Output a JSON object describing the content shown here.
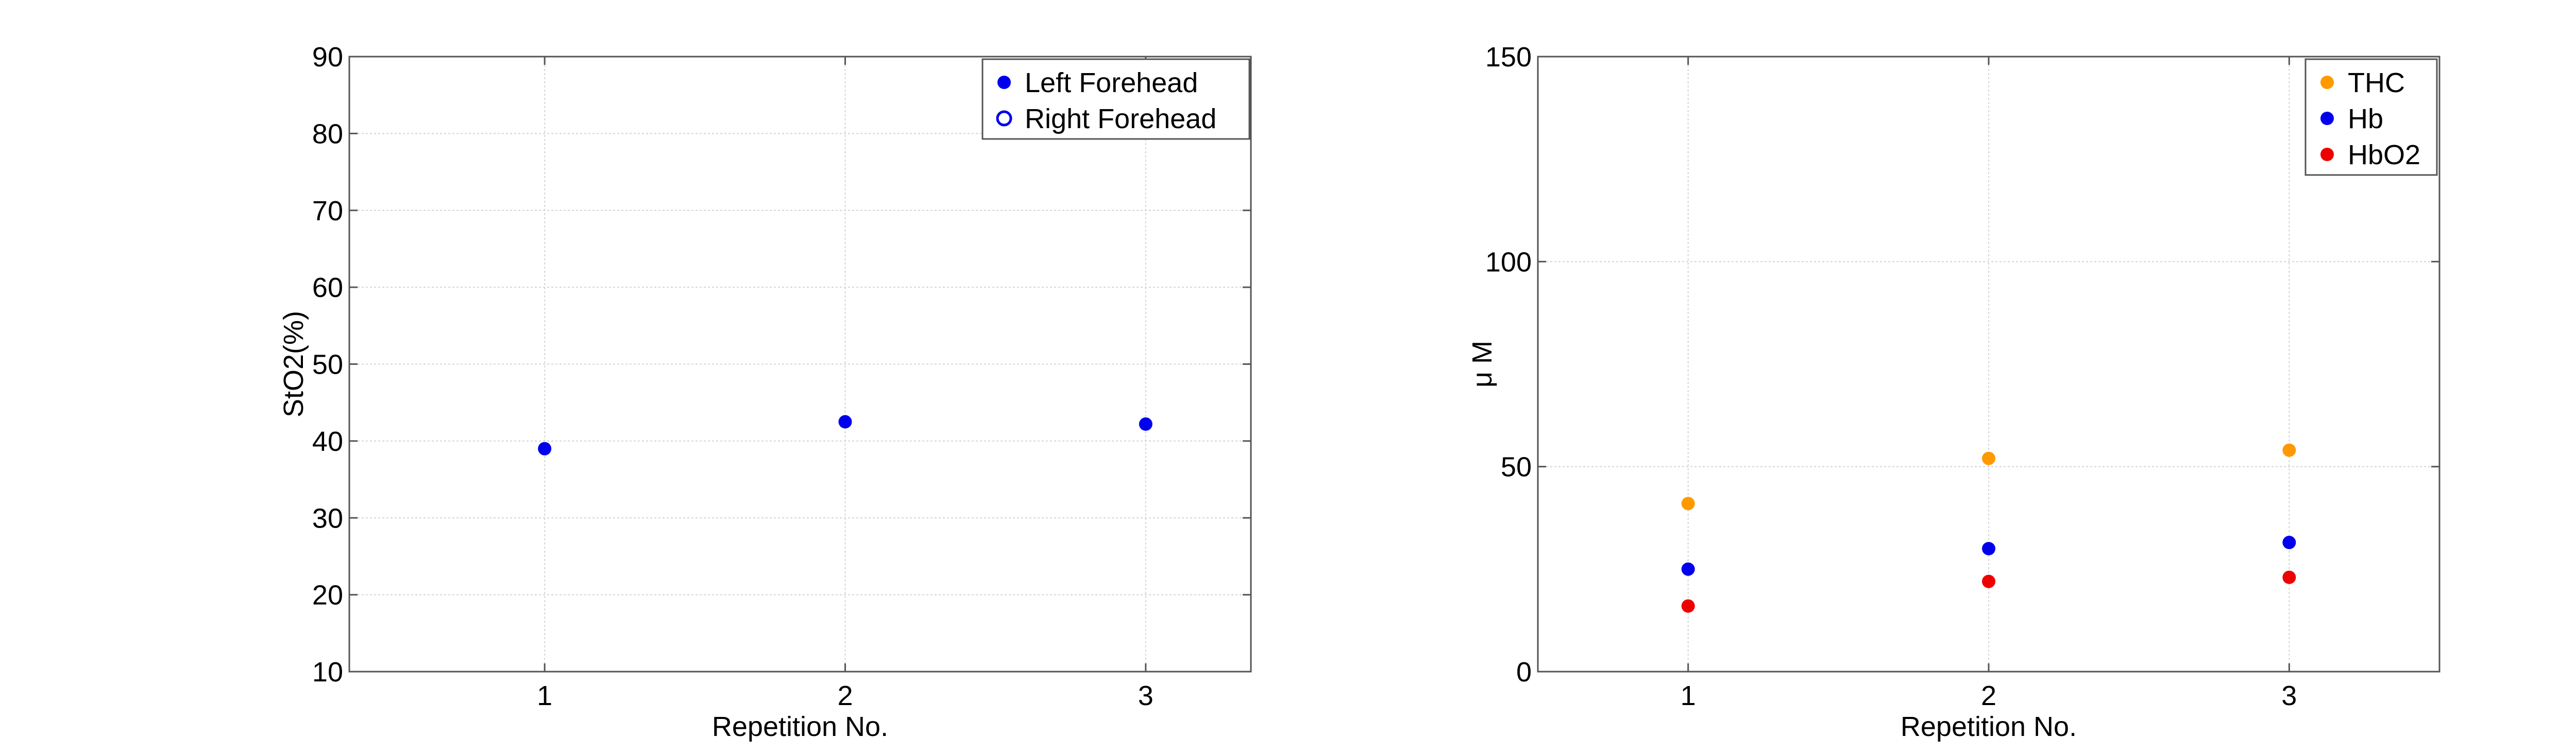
{
  "chart_data": [
    {
      "type": "scatter",
      "title": "",
      "xlabel": "Repetition No.",
      "ylabel": "StO2(%)",
      "xlim": [
        0.35,
        3.35
      ],
      "ylim": [
        10,
        90
      ],
      "xticks": [
        1,
        2,
        3
      ],
      "yticks": [
        10,
        20,
        30,
        40,
        50,
        60,
        70,
        80,
        90
      ],
      "grid": true,
      "legend": "top-right",
      "series": [
        {
          "name": "Left Forehead",
          "color": "#0000ee",
          "marker": "filled-circle",
          "x": [
            1,
            2,
            3
          ],
          "values": [
            39,
            42.5,
            42.2
          ]
        },
        {
          "name": "Right Forehead",
          "color": "#0000ee",
          "marker": "open-circle",
          "x": [],
          "values": []
        }
      ]
    },
    {
      "type": "scatter",
      "title": "",
      "xlabel": "Repetition No.",
      "ylabel": "μ M",
      "xlim": [
        0.5,
        3.5
      ],
      "ylim": [
        0,
        150
      ],
      "xticks": [
        1,
        2,
        3
      ],
      "yticks": [
        0,
        50,
        100,
        150
      ],
      "grid": true,
      "legend": "top-right",
      "series": [
        {
          "name": "THC",
          "color": "#ff9900",
          "marker": "filled-circle",
          "x": [
            1,
            2,
            3
          ],
          "values": [
            41,
            52,
            54
          ]
        },
        {
          "name": "Hb",
          "color": "#0000ee",
          "marker": "filled-circle",
          "x": [
            1,
            2,
            3
          ],
          "values": [
            25,
            30,
            31.5
          ]
        },
        {
          "name": "HbO2",
          "color": "#ee0000",
          "marker": "filled-circle",
          "x": [
            1,
            2,
            3
          ],
          "values": [
            16,
            22,
            23
          ]
        }
      ]
    }
  ]
}
